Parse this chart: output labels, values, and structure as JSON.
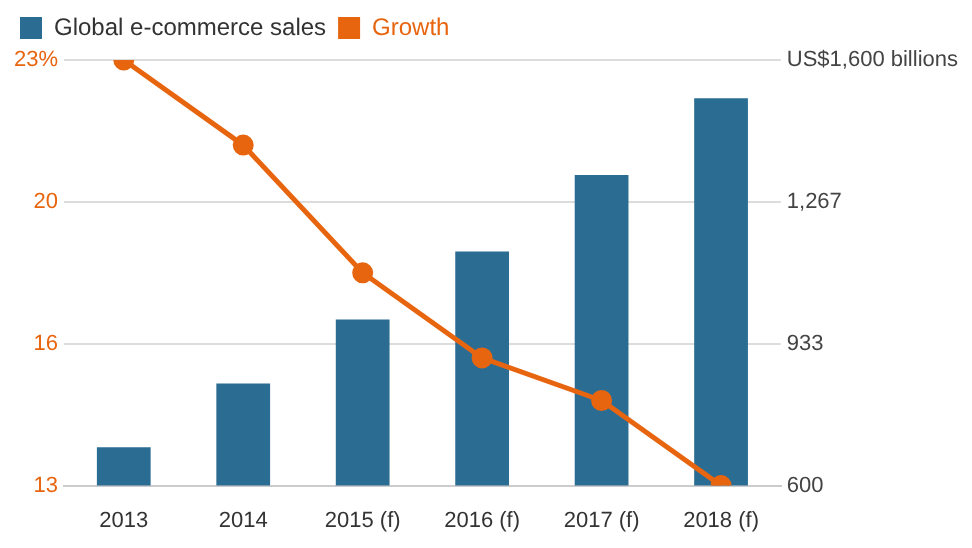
{
  "chart_data": {
    "type": "bar",
    "categories": [
      "2013",
      "2014",
      "2015 (f)",
      "2016 (f)",
      "2017 (f)",
      "2018 (f)"
    ],
    "series": [
      {
        "name": "Global e-commerce sales",
        "axis": "y2",
        "color": "#2b6c93",
        "values": [
          690,
          840,
          990,
          1150,
          1330,
          1510
        ]
      },
      {
        "name": "Growth",
        "type": "line",
        "axis": "y",
        "color": "#e8650f",
        "values": [
          23,
          21,
          18,
          16,
          15,
          13
        ]
      }
    ],
    "ylim": [
      13,
      23
    ],
    "yticks": [
      13,
      {
        "value": 16.33,
        "label": "16"
      },
      {
        "value": 19.67,
        "label": "20"
      },
      {
        "value": 23,
        "label": "23%"
      }
    ],
    "y2lim": [
      600,
      1600
    ],
    "y2ticks": [
      600,
      {
        "value": 933,
        "label": "933"
      },
      {
        "value": 1267,
        "label": "1,267"
      },
      {
        "value": 1600,
        "label": "US$1,600 billions"
      }
    ],
    "grid": "y",
    "legend": "top left",
    "marker": "circle"
  }
}
